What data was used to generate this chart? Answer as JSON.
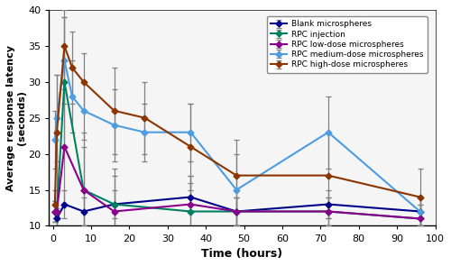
{
  "title": "",
  "xlabel": "Time (hours)",
  "ylabel": "Average response latency\n(seconds)",
  "xlim": [
    -1,
    100
  ],
  "ylim": [
    10,
    40
  ],
  "yticks": [
    10,
    15,
    20,
    25,
    30,
    35,
    40
  ],
  "xticks": [
    0,
    10,
    20,
    30,
    40,
    50,
    60,
    70,
    80,
    90,
    100
  ],
  "series": [
    {
      "label": "Blank microspheres",
      "color": "#00008B",
      "x": [
        0.5,
        1,
        3,
        8,
        16,
        36,
        48,
        72,
        96
      ],
      "y": [
        12,
        11,
        13,
        12,
        13,
        14,
        12,
        13,
        12
      ],
      "yerr": [
        1.5,
        1.5,
        2,
        2,
        2,
        2,
        2,
        2,
        2
      ]
    },
    {
      "label": "RPC injection",
      "color": "#008060",
      "x": [
        0.5,
        1,
        3,
        8,
        16,
        36,
        48,
        72,
        96
      ],
      "y": [
        12,
        12,
        30,
        15,
        13,
        12,
        12,
        12,
        11
      ],
      "yerr": [
        1.5,
        3,
        9,
        8,
        5,
        5,
        2,
        2,
        2
      ]
    },
    {
      "label": "RPC low-dose microspheres",
      "color": "#8B008B",
      "x": [
        0.5,
        1,
        3,
        8,
        16,
        36,
        48,
        72,
        96
      ],
      "y": [
        12,
        12,
        21,
        15,
        12,
        13,
        12,
        12,
        11
      ],
      "yerr": [
        1.5,
        3,
        8,
        6,
        5,
        4,
        2,
        2,
        2
      ]
    },
    {
      "label": "RPC medium-dose microspheres",
      "color": "#4d9de0",
      "x": [
        0.5,
        1,
        3,
        5,
        8,
        16,
        24,
        36,
        48,
        72,
        96
      ],
      "y": [
        22,
        25,
        33,
        28,
        26,
        24,
        23,
        23,
        15,
        23,
        12
      ],
      "yerr": [
        4,
        6,
        6,
        5,
        4,
        5,
        4,
        4,
        5,
        5,
        2
      ]
    },
    {
      "label": "RPC high-dose microspheres",
      "color": "#8B3500",
      "x": [
        0.5,
        1,
        3,
        5,
        8,
        16,
        24,
        36,
        48,
        72,
        96
      ],
      "y": [
        13,
        23,
        35,
        32,
        30,
        26,
        25,
        21,
        17,
        17,
        14
      ],
      "yerr": [
        2,
        8,
        5,
        5,
        4,
        6,
        5,
        6,
        5,
        6,
        4
      ]
    }
  ],
  "legend_loc": "upper right",
  "marker": "D",
  "markersize": 3.5,
  "linewidth": 1.5,
  "bg_color": "#f5f5f5"
}
